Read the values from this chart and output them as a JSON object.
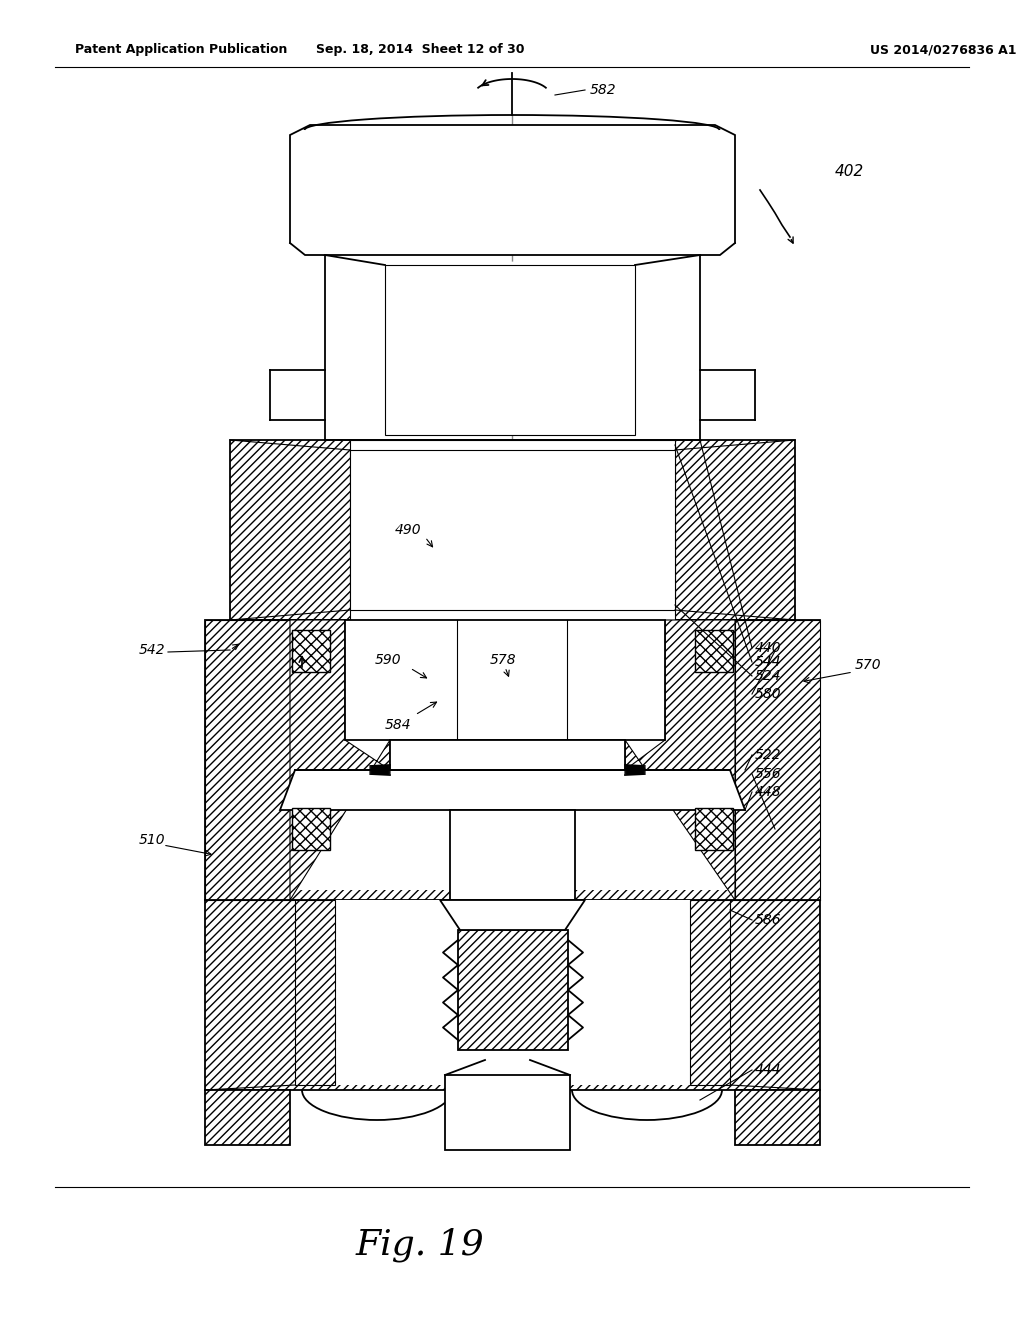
{
  "title_left": "Patent Application Publication",
  "title_mid": "Sep. 18, 2014  Sheet 12 of 30",
  "title_right": "US 2014/0276836 A1",
  "fig_label": "Fig. 19",
  "bg": "#ffffff",
  "lc": "#000000",
  "gray": "#cccccc"
}
